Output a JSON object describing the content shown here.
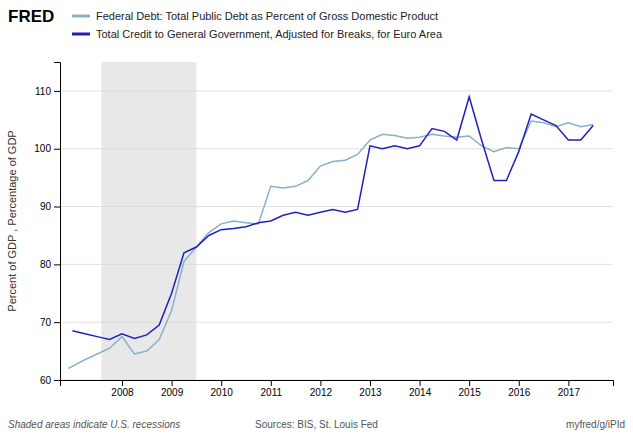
{
  "chart_data": {
    "type": "line",
    "ylabel": "Percent of GDP , Percentage of GDP",
    "annotations": [
      "FRED",
      "Shaded areas indicate U.S. recessions",
      "Sources: BIS, St. Louis Fed",
      "myfred/g/iPId"
    ],
    "shaded_x_range": [
      2007.583,
      2009.5
    ],
    "xlim": [
      2006.75,
      2017.9
    ],
    "xticks": [
      2008,
      2009,
      2010,
      2011,
      2012,
      2013,
      2014,
      2015,
      2016,
      2017
    ],
    "ylim": [
      60,
      115
    ],
    "yticks": [
      60,
      70,
      80,
      90,
      100,
      110
    ],
    "grid": true,
    "legend": "top left",
    "series": [
      {
        "name": "Federal Debt: Total Public Debt as Percent of Gross Domestic Product",
        "color": "#8ab0c8",
        "x": [
          2006.917,
          2007.25,
          2007.5,
          2007.75,
          2008.0,
          2008.25,
          2008.5,
          2008.75,
          2009.0,
          2009.25,
          2009.5,
          2009.75,
          2010.0,
          2010.25,
          2010.5,
          2010.75,
          2011.0,
          2011.25,
          2011.5,
          2011.75,
          2012.0,
          2012.25,
          2012.5,
          2012.75,
          2013.0,
          2013.25,
          2013.5,
          2013.75,
          2014.0,
          2014.25,
          2014.5,
          2014.75,
          2015.0,
          2015.25,
          2015.5,
          2015.75,
          2016.0,
          2016.25,
          2016.5,
          2016.75,
          2017.0,
          2017.25,
          2017.5
        ],
        "values": [
          62.0,
          63.5,
          64.5,
          65.5,
          67.5,
          64.5,
          65.0,
          67.0,
          72.0,
          80.5,
          83.0,
          85.5,
          87.0,
          87.5,
          87.2,
          87.0,
          93.5,
          93.2,
          93.5,
          94.5,
          97.0,
          97.8,
          98.0,
          99.0,
          101.5,
          102.5,
          102.3,
          101.8,
          102.0,
          102.5,
          102.2,
          102.0,
          102.2,
          100.5,
          99.5,
          100.2,
          100.0,
          104.8,
          104.5,
          103.8,
          104.5,
          103.8,
          104.2
        ]
      },
      {
        "name": "Total Credit to General Government, Adjusted for Breaks, for Euro Area",
        "color": "#2020c0",
        "x": [
          2007.0,
          2007.25,
          2007.5,
          2007.75,
          2008.0,
          2008.25,
          2008.5,
          2008.75,
          2009.0,
          2009.25,
          2009.5,
          2009.75,
          2010.0,
          2010.25,
          2010.5,
          2010.75,
          2011.0,
          2011.25,
          2011.5,
          2011.75,
          2012.0,
          2012.25,
          2012.5,
          2012.75,
          2013.0,
          2013.25,
          2013.5,
          2013.75,
          2014.0,
          2014.25,
          2014.5,
          2014.75,
          2015.0,
          2015.25,
          2015.5,
          2015.75,
          2016.0,
          2016.25,
          2016.5,
          2016.75,
          2017.0,
          2017.25,
          2017.5
        ],
        "values": [
          68.5,
          68.0,
          67.5,
          67.0,
          68.0,
          67.2,
          67.8,
          69.5,
          75.0,
          82.0,
          83.0,
          85.0,
          86.0,
          86.2,
          86.5,
          87.2,
          87.5,
          88.5,
          89.0,
          88.5,
          89.0,
          89.5,
          89.0,
          89.5,
          100.5,
          100.0,
          100.5,
          100.0,
          100.5,
          103.5,
          103.0,
          101.5,
          109.0,
          101.5,
          94.5,
          94.5,
          99.5,
          106.0,
          105.0,
          104.0,
          101.5,
          101.5,
          104.0
        ]
      }
    ]
  }
}
